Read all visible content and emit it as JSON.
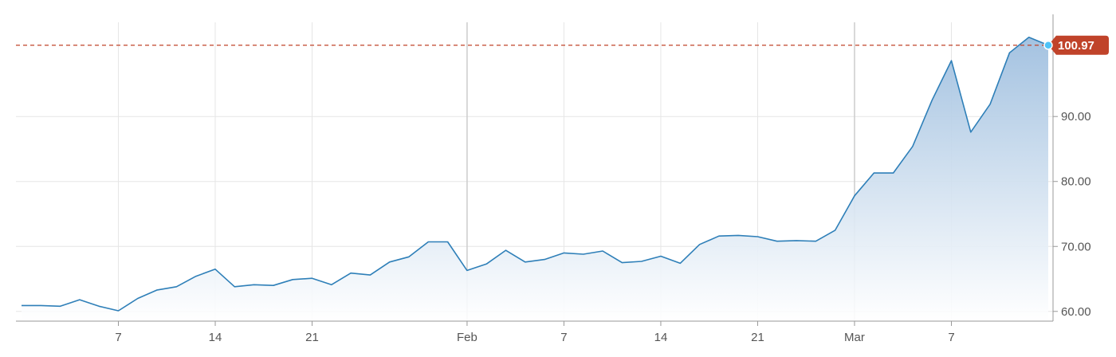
{
  "chart_data": {
    "type": "area",
    "title": "",
    "xlabel": "",
    "ylabel": "",
    "ylim": [
      58.5,
      104.5
    ],
    "grid": true,
    "colors": {
      "line": "#2e7fb8",
      "fill_top": "#9fbfdf",
      "fill_bottom": "#ffffff",
      "reference": "#c0432a",
      "marker": "#4fc3f7"
    },
    "y_ticks": [
      60,
      70,
      80,
      90
    ],
    "y_tick_labels": [
      "60.00",
      "70.00",
      "80.00",
      "90.00"
    ],
    "x_ticks": [
      {
        "t": 5,
        "label": "7",
        "major": false
      },
      {
        "t": 10,
        "label": "14",
        "major": false
      },
      {
        "t": 15,
        "label": "21",
        "major": false
      },
      {
        "t": 23,
        "label": "Feb",
        "major": true
      },
      {
        "t": 28,
        "label": "7",
        "major": false
      },
      {
        "t": 33,
        "label": "14",
        "major": false
      },
      {
        "t": 38,
        "label": "21",
        "major": false
      },
      {
        "t": 43,
        "label": "Mar",
        "major": true
      },
      {
        "t": 48,
        "label": "7",
        "major": false
      }
    ],
    "series": [
      {
        "values": [
          60.9,
          60.9,
          60.8,
          61.8,
          60.8,
          60.1,
          62.0,
          63.3,
          63.8,
          65.4,
          66.5,
          63.8,
          64.1,
          64.0,
          64.9,
          65.1,
          64.1,
          65.9,
          65.6,
          67.6,
          68.4,
          70.7,
          70.7,
          66.3,
          67.3,
          69.4,
          67.6,
          68.0,
          69.0,
          68.8,
          69.3,
          67.5,
          67.7,
          68.5,
          67.4,
          70.3,
          71.6,
          71.7,
          71.5,
          70.8,
          70.9,
          70.8,
          72.5,
          77.8,
          81.3,
          81.3,
          85.4,
          92.5,
          98.6,
          87.6,
          91.9,
          99.8,
          102.2,
          100.97
        ]
      }
    ],
    "reference_line": {
      "value": 100.97,
      "label": "100.97"
    }
  }
}
